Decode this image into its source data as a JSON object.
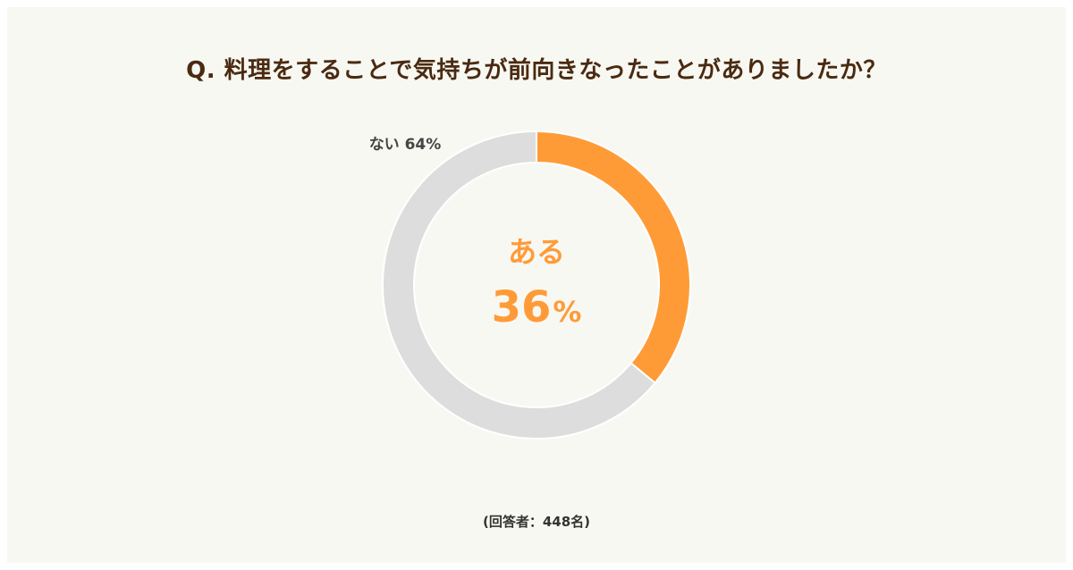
{
  "title": "Q. 料理をすることで気持ちが前向きなったことがありましたか？",
  "footnote": "(回答者：448名)",
  "colors": {
    "background": "#f8f8f3",
    "accent": "#ff9b37",
    "muted": "#dddddd",
    "title": "#4a2a10",
    "label": "#444444"
  },
  "chart_data": {
    "type": "pie",
    "variant": "donut",
    "title": "Q. 料理をすることで気持ちが前向きなったことがありましたか？",
    "slices": [
      {
        "label": "ある",
        "value": 36,
        "color": "#ff9b37"
      },
      {
        "label": "ない",
        "value": 64,
        "color": "#dddddd"
      }
    ],
    "center": {
      "label": "ある",
      "value": "36",
      "unit": "%"
    },
    "outside_label": "ない 64%"
  }
}
